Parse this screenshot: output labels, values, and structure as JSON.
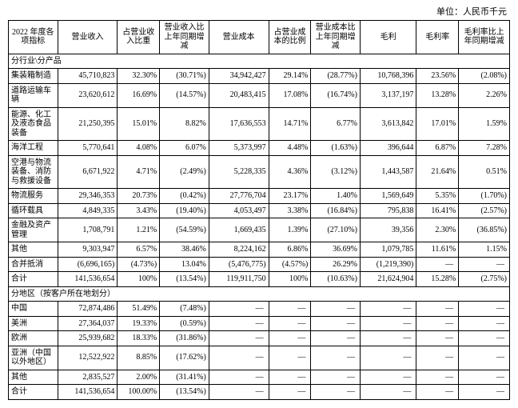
{
  "unit_label": "单位：人民币千元",
  "head": {
    "metric": "2022 年度各项指标",
    "revenue": "营业收入",
    "rev_pct": "占营业收入比重",
    "rev_chg": "营业收入比上年同期增减",
    "cost": "营业成本",
    "cost_pct": "占营业成本的比例",
    "cost_chg": "营业成本比上年同期增减",
    "gp": "毛利",
    "gpm": "毛利率",
    "gpm_chg": "毛利率比上年同期增减"
  },
  "sections": [
    {
      "title": "分行业\\分产品",
      "rows": [
        {
          "label": "集装箱制造",
          "rev": "45,710,823",
          "rev_pct": "32.30%",
          "rev_chg": "(30.71%)",
          "cost": "34,942,427",
          "cost_pct": "29.14%",
          "cost_chg": "(28.77%)",
          "gp": "10,768,396",
          "gpm": "23.56%",
          "gpm_chg": "(2.08%)"
        },
        {
          "label": "道路运输车辆",
          "rev": "23,620,612",
          "rev_pct": "16.69%",
          "rev_chg": "(14.57%)",
          "cost": "20,483,415",
          "cost_pct": "17.08%",
          "cost_chg": "(16.74%)",
          "gp": "3,137,197",
          "gpm": "13.28%",
          "gpm_chg": "2.26%"
        },
        {
          "label": "能源、化工及液态食品装备",
          "rev": "21,250,395",
          "rev_pct": "15.01%",
          "rev_chg": "8.82%",
          "cost": "17,636,553",
          "cost_pct": "14.71%",
          "cost_chg": "6.77%",
          "gp": "3,613,842",
          "gpm": "17.01%",
          "gpm_chg": "1.59%"
        },
        {
          "label": "海洋工程",
          "rev": "5,770,641",
          "rev_pct": "4.08%",
          "rev_chg": "6.07%",
          "cost": "5,373,997",
          "cost_pct": "4.48%",
          "cost_chg": "(1.63%)",
          "gp": "396,644",
          "gpm": "6.87%",
          "gpm_chg": "7.28%"
        },
        {
          "label": "空港与物流装备、消防与救援设备",
          "rev": "6,671,922",
          "rev_pct": "4.71%",
          "rev_chg": "(2.49%)",
          "cost": "5,228,335",
          "cost_pct": "4.36%",
          "cost_chg": "(3.12%)",
          "gp": "1,443,587",
          "gpm": "21.64%",
          "gpm_chg": "0.51%"
        },
        {
          "label": "物流服务",
          "rev": "29,346,353",
          "rev_pct": "20.73%",
          "rev_chg": "(0.42%)",
          "cost": "27,776,704",
          "cost_pct": "23.17%",
          "cost_chg": "1.40%",
          "gp": "1,569,649",
          "gpm": "5.35%",
          "gpm_chg": "(1.70%)"
        },
        {
          "label": "循环载具",
          "rev": "4,849,335",
          "rev_pct": "3.43%",
          "rev_chg": "(19.40%)",
          "cost": "4,053,497",
          "cost_pct": "3.38%",
          "cost_chg": "(16.84%)",
          "gp": "795,838",
          "gpm": "16.41%",
          "gpm_chg": "(2.57%)"
        },
        {
          "label": "金融及资产管理",
          "rev": "1,708,791",
          "rev_pct": "1.21%",
          "rev_chg": "(54.59%)",
          "cost": "1,669,435",
          "cost_pct": "1.39%",
          "cost_chg": "(27.10%)",
          "gp": "39,356",
          "gpm": "2.30%",
          "gpm_chg": "(36.85%)"
        },
        {
          "label": "其他",
          "rev": "9,303,947",
          "rev_pct": "6.57%",
          "rev_chg": "38.46%",
          "cost": "8,224,162",
          "cost_pct": "6.86%",
          "cost_chg": "36.69%",
          "gp": "1,079,785",
          "gpm": "11.61%",
          "gpm_chg": "1.15%"
        },
        {
          "label": "合并抵消",
          "rev": "(6,696,165)",
          "rev_pct": "(4.73%)",
          "rev_chg": "13.04%",
          "cost": "(5,476,775)",
          "cost_pct": "(4.57%)",
          "cost_chg": "26.29%",
          "gp": "(1,219,390)",
          "gpm": "—",
          "gpm_chg": "—"
        },
        {
          "label": "合计",
          "rev": "141,536,654",
          "rev_pct": "100%",
          "rev_chg": "(13.54%)",
          "cost": "119,911,750",
          "cost_pct": "100%",
          "cost_chg": "(10.63%)",
          "gp": "21,624,904",
          "gpm": "15.28%",
          "gpm_chg": "(2.75%)"
        }
      ]
    },
    {
      "title": "分地区（按客户所在地划分）",
      "rows": [
        {
          "label": "中国",
          "rev": "72,874,486",
          "rev_pct": "51.49%",
          "rev_chg": "(7.48%)",
          "cost": "—",
          "cost_pct": "—",
          "cost_chg": "—",
          "gp": "—",
          "gpm": "—",
          "gpm_chg": "—"
        },
        {
          "label": "美洲",
          "rev": "27,364,037",
          "rev_pct": "19.33%",
          "rev_chg": "(0.59%)",
          "cost": "—",
          "cost_pct": "—",
          "cost_chg": "—",
          "gp": "—",
          "gpm": "—",
          "gpm_chg": "—"
        },
        {
          "label": "欧洲",
          "rev": "25,939,682",
          "rev_pct": "18.33%",
          "rev_chg": "(31.86%)",
          "cost": "—",
          "cost_pct": "—",
          "cost_chg": "—",
          "gp": "—",
          "gpm": "—",
          "gpm_chg": "—"
        },
        {
          "label": "亚洲（中国以外地区）",
          "rev": "12,522,922",
          "rev_pct": "8.85%",
          "rev_chg": "(17.62%)",
          "cost": "—",
          "cost_pct": "—",
          "cost_chg": "—",
          "gp": "—",
          "gpm": "—",
          "gpm_chg": "—"
        },
        {
          "label": "其他",
          "rev": "2,835,527",
          "rev_pct": "2.00%",
          "rev_chg": "(31.41%)",
          "cost": "—",
          "cost_pct": "—",
          "cost_chg": "—",
          "gp": "—",
          "gpm": "—",
          "gpm_chg": "—"
        },
        {
          "label": "合计",
          "rev": "141,536,654",
          "rev_pct": "100.00%",
          "rev_chg": "(13.54%)",
          "cost": "—",
          "cost_pct": "—",
          "cost_chg": "—",
          "gp": "—",
          "gpm": "—",
          "gpm_chg": "—"
        }
      ]
    }
  ]
}
